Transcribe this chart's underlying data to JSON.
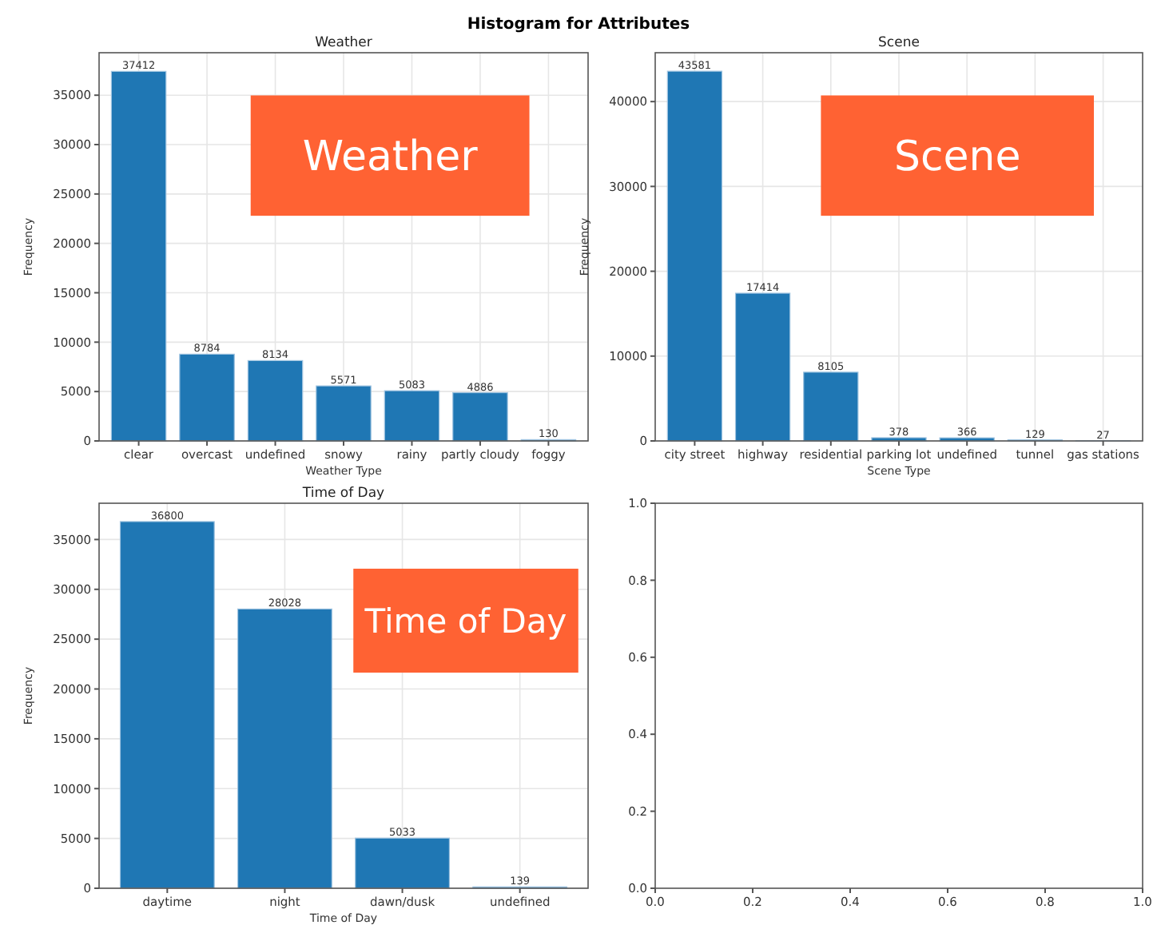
{
  "chart_data": [
    {
      "type": "bar",
      "title": "Histogram for Attributes",
      "subtitle": "Weather",
      "xlabel": "Weather Type",
      "ylabel": "Frequency",
      "categories": [
        "clear",
        "overcast",
        "undefined",
        "snowy",
        "rainy",
        "partly cloudy",
        "foggy"
      ],
      "values": [
        37412,
        8784,
        8134,
        5571,
        5083,
        4886,
        130
      ],
      "color": "#1f77b4",
      "ylim": [
        0,
        39300
      ],
      "yticks": [
        0,
        5000,
        10000,
        15000,
        20000,
        25000,
        30000,
        35000
      ],
      "grid": true,
      "data_labels": true,
      "annotations": [
        "Weather"
      ]
    },
    {
      "type": "bar",
      "title": "Scene",
      "xlabel": "Scene Type",
      "ylabel": "Frequency",
      "categories": [
        "city street",
        "highway",
        "residential",
        "parking lot",
        "undefined",
        "tunnel",
        "gas stations"
      ],
      "values": [
        43581,
        17414,
        8105,
        378,
        366,
        129,
        27
      ],
      "color": "#1f77b4",
      "ylim": [
        0,
        45760
      ],
      "yticks": [
        0,
        10000,
        20000,
        30000,
        40000
      ],
      "grid": true,
      "data_labels": true,
      "annotations": [
        "Scene"
      ]
    },
    {
      "type": "bar",
      "title": "Time of Day",
      "xlabel": "Time of Day",
      "ylabel": "Frequency",
      "categories": [
        "daytime",
        "night",
        "dawn/dusk",
        "undefined"
      ],
      "values": [
        36800,
        28028,
        5033,
        139
      ],
      "color": "#1f77b4",
      "ylim": [
        0,
        38640
      ],
      "yticks": [
        0,
        5000,
        10000,
        15000,
        20000,
        25000,
        30000,
        35000
      ],
      "grid": true,
      "data_labels": true,
      "annotations": [
        "Time of Day"
      ]
    },
    {
      "type": "scatter",
      "xlim": [
        0,
        1
      ],
      "ylim": [
        0,
        1
      ],
      "xticks": [
        {
          "value": 0,
          "label": "0.0"
        },
        0.2,
        0.4,
        0.6,
        0.8,
        {
          "value": 1,
          "label": "1.0"
        }
      ],
      "yticks": [
        {
          "value": 0,
          "label": "0.0"
        },
        0.2,
        0.4,
        0.6,
        0.8,
        {
          "value": 1,
          "label": "1.0"
        }
      ]
    }
  ]
}
